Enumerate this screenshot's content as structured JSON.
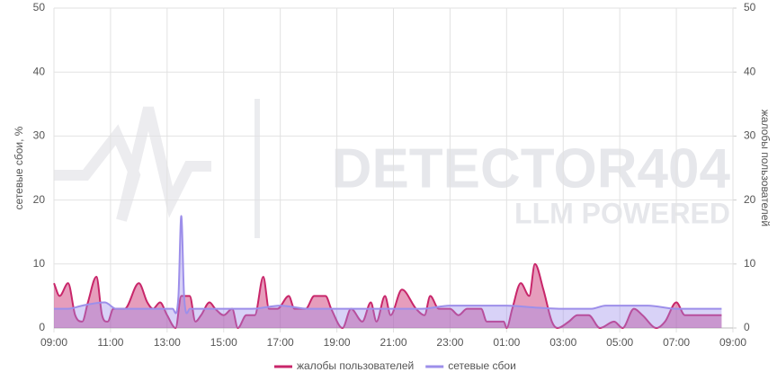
{
  "chart_data": {
    "type": "area",
    "watermark": [
      "DETECTOR404",
      "LLM POWERED"
    ],
    "y_label": "сетевые сбои, %",
    "y2_label": "жалобы пользователей",
    "xlim": [
      0,
      24
    ],
    "xticks": [
      {
        "value": 0,
        "label": "09:00"
      },
      {
        "value": 2,
        "label": "11:00"
      },
      {
        "value": 4,
        "label": "13:00"
      },
      {
        "value": 6,
        "label": "15:00"
      },
      {
        "value": 8,
        "label": "17:00"
      },
      {
        "value": 10,
        "label": "19:00"
      },
      {
        "value": 12,
        "label": "21:00"
      },
      {
        "value": 14,
        "label": "23:00"
      },
      {
        "value": 16,
        "label": "01:00"
      },
      {
        "value": 18,
        "label": "03:00"
      },
      {
        "value": 20,
        "label": "05:00"
      },
      {
        "value": 22,
        "label": "07:00"
      },
      {
        "value": 24,
        "label": "09:00"
      }
    ],
    "ylim": [
      0,
      50
    ],
    "yticks": [
      0,
      10,
      20,
      30,
      40,
      50
    ],
    "y2lim": [
      0,
      50
    ],
    "y2ticks": [
      0,
      10,
      20,
      30,
      40,
      50
    ],
    "grid": true,
    "legend": "bottom",
    "series": [
      {
        "name": "жалобы пользователей",
        "color": "#c8266a",
        "axis": "y2",
        "x": [
          0,
          0.2,
          0.5,
          0.75,
          1,
          1.2,
          1.5,
          1.7,
          1.9,
          2.1,
          2.5,
          3,
          3.3,
          3.5,
          3.75,
          4,
          4.3,
          4.5,
          4.8,
          5,
          5.2,
          5.5,
          5.7,
          6,
          6.3,
          6.5,
          6.8,
          7.1,
          7.4,
          7.6,
          7.9,
          8.3,
          8.5,
          8.9,
          9.2,
          9.6,
          9.8,
          10.2,
          10.5,
          10.9,
          11.2,
          11.4,
          11.7,
          11.9,
          12.3,
          12.8,
          13.1,
          13.3,
          13.6,
          14,
          14.3,
          14.6,
          15.1,
          15.3,
          15.9,
          16.0,
          16.2,
          16.5,
          16.8,
          17.0,
          17.3,
          17.6,
          17.8,
          18.2,
          18.5,
          18.9,
          19.3,
          19.8,
          20.1,
          20.5,
          20.8,
          21.3,
          21.6,
          22.0,
          22.3,
          22.6,
          23.6
        ],
        "values": [
          7,
          5,
          7,
          2,
          1,
          4,
          8,
          2,
          1,
          3,
          3,
          7,
          4,
          3,
          4,
          2,
          0,
          5,
          5,
          1,
          2,
          4,
          3,
          2,
          3,
          0,
          2,
          2,
          8,
          3,
          3,
          5,
          3,
          3,
          5,
          5,
          3,
          0,
          3,
          1,
          4,
          1,
          5,
          2,
          6,
          3,
          2,
          5,
          3,
          3,
          2,
          3,
          3,
          1,
          1,
          0,
          3,
          7,
          5,
          10,
          6,
          1,
          0,
          1,
          2,
          2,
          0,
          1,
          0,
          3,
          2,
          0,
          1,
          4,
          2,
          2,
          2
        ]
      },
      {
        "name": "сетевые сбои",
        "color": "#9d8fea",
        "axis": "y",
        "x": [
          0,
          0.5,
          1,
          1.8,
          2.2,
          3,
          4.2,
          4.4,
          4.5,
          4.6,
          4.8,
          6,
          7,
          8,
          9,
          10,
          11,
          12,
          13,
          14,
          15,
          16,
          17,
          18,
          19,
          19.5,
          20,
          21,
          22,
          23,
          23.6
        ],
        "values": [
          3,
          3,
          3.5,
          4,
          3,
          3,
          3,
          5,
          17.5,
          5,
          3,
          3,
          3,
          3.5,
          3,
          3,
          3,
          3,
          3,
          3.5,
          3.5,
          3.5,
          3.2,
          3,
          3,
          3.5,
          3.5,
          3.5,
          3,
          3,
          3
        ]
      }
    ]
  }
}
